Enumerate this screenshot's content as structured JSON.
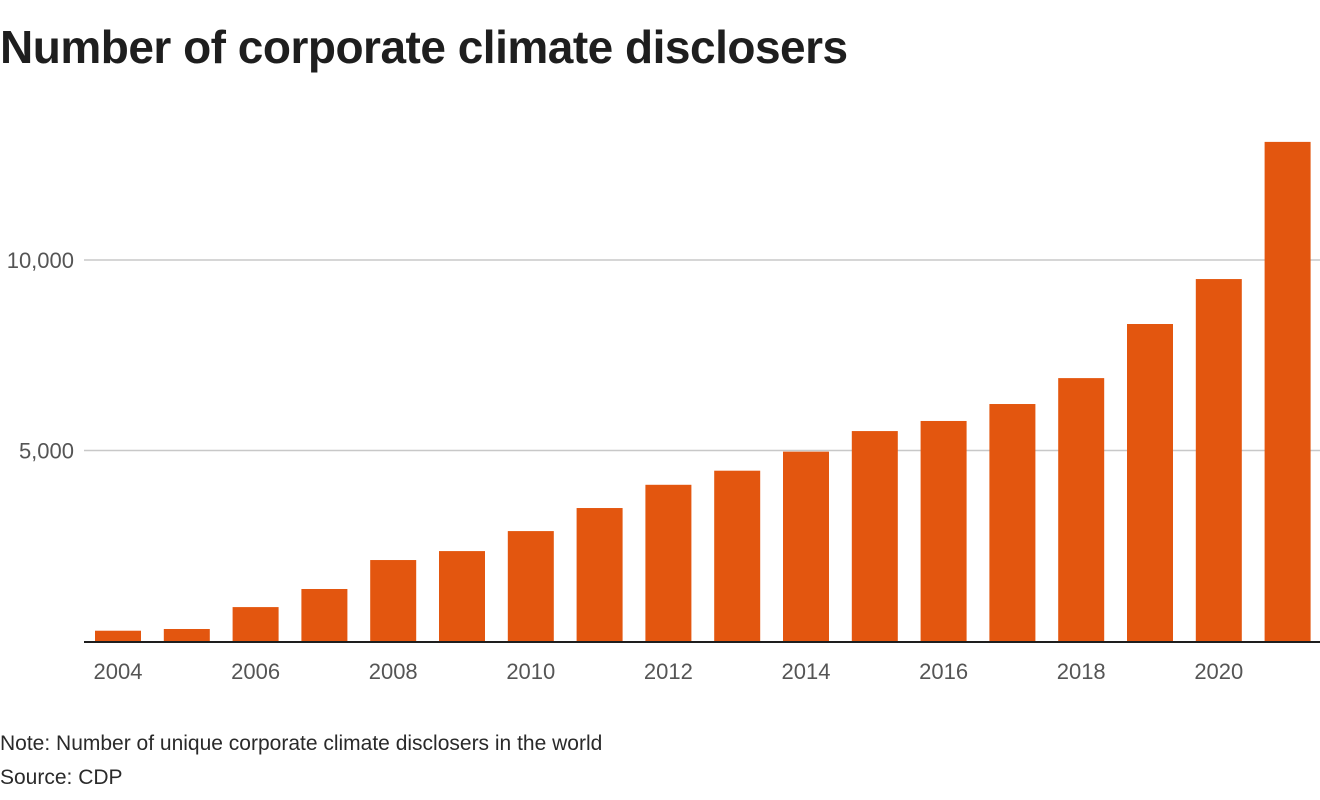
{
  "chart_data": {
    "type": "bar",
    "title": "Number of corporate climate disclosers",
    "xlabel": "",
    "ylabel": "",
    "categories": [
      "2004",
      "2005",
      "2006",
      "2007",
      "2008",
      "2009",
      "2010",
      "2011",
      "2012",
      "2013",
      "2014",
      "2015",
      "2016",
      "2017",
      "2018",
      "2019",
      "2020",
      "2021"
    ],
    "values": [
      270,
      315,
      890,
      1365,
      2125,
      2360,
      2885,
      3490,
      4100,
      4470,
      4970,
      5510,
      5775,
      6220,
      6900,
      8320,
      9500,
      13100
    ],
    "ylim": [
      0,
      13100
    ],
    "yticks": [
      5000,
      10000
    ],
    "ytick_labels": [
      "5,000",
      "10,000"
    ],
    "xtick_labels": [
      "2004",
      "2006",
      "2008",
      "2010",
      "2012",
      "2014",
      "2016",
      "2018",
      "2020"
    ],
    "grid": true,
    "legend": "none",
    "bar_color": "#e3560f",
    "note": "Note: Number of unique corporate climate disclosers in the world",
    "source": "Source: CDP"
  }
}
